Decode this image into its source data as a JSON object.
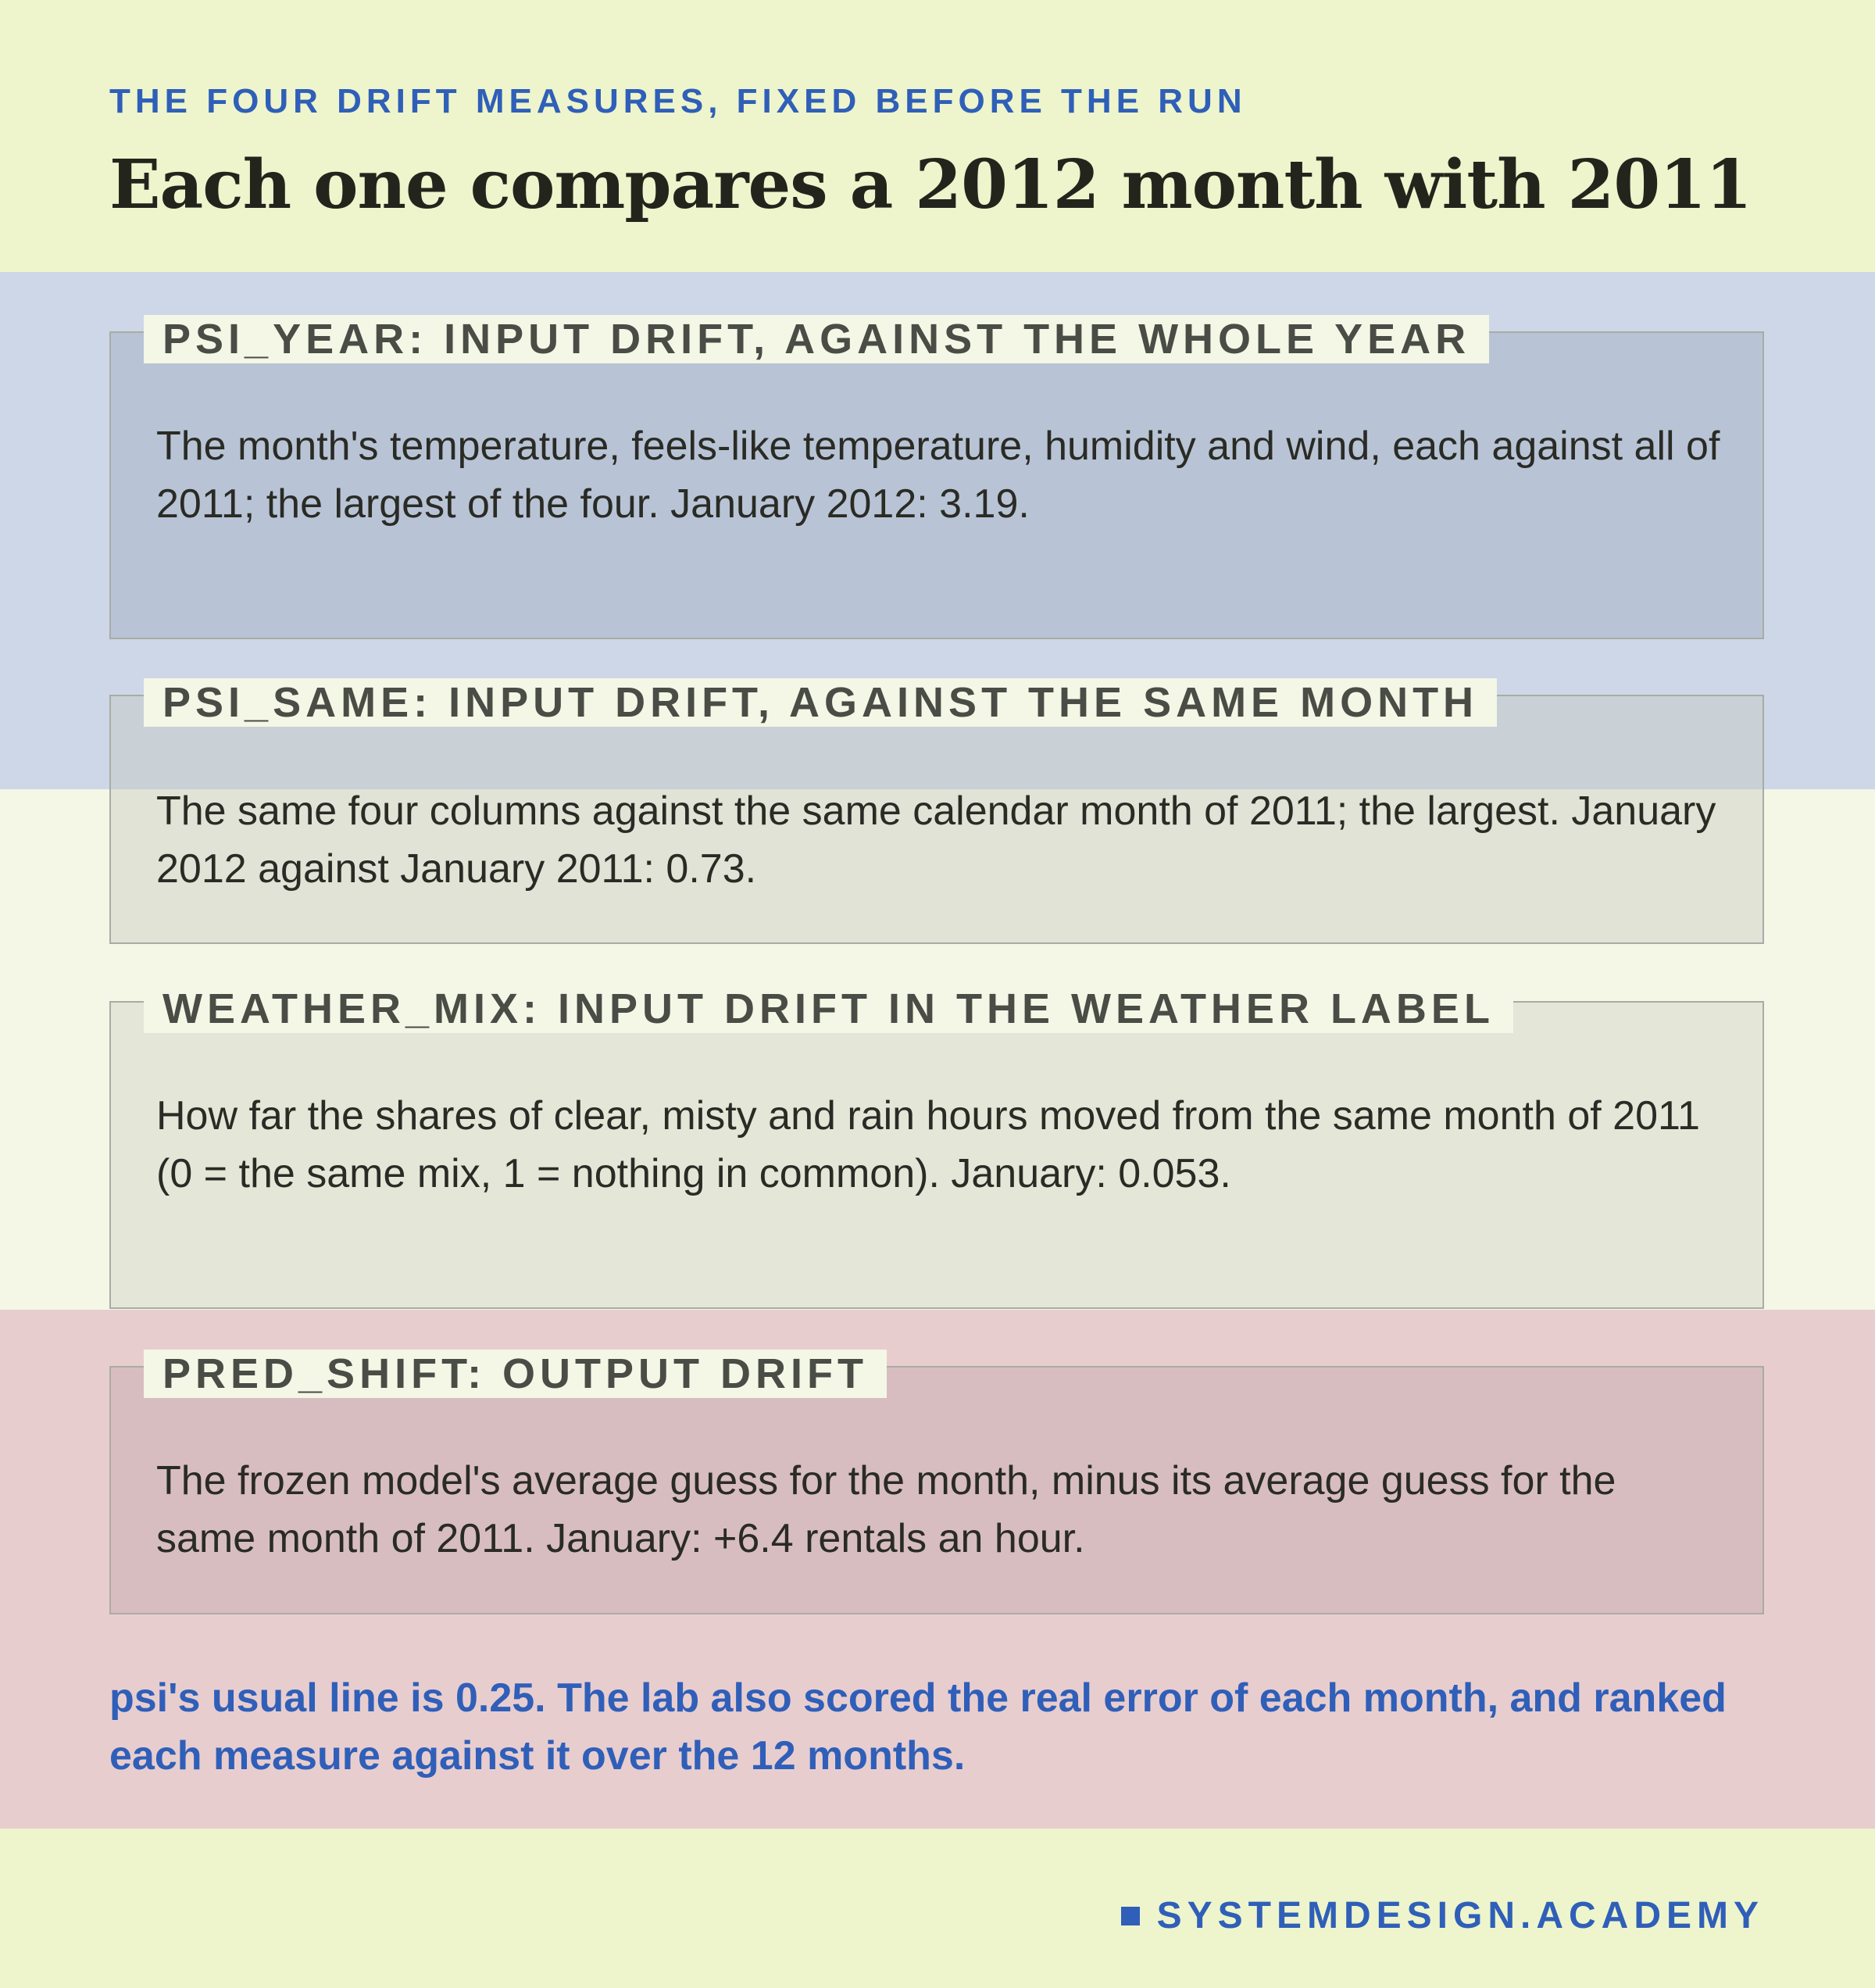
{
  "header": {
    "eyebrow": "THE FOUR DRIFT MEASURES, FIXED BEFORE THE RUN",
    "title": "Each one compares a 2012 month with 2011"
  },
  "measures": [
    {
      "label": "PSI_YEAR: INPUT DRIFT, AGAINST THE WHOLE YEAR",
      "body": "The month's temperature, feels-like temperature, humidity and wind, each against all of 2011; the largest of the four. January 2012: 3.19."
    },
    {
      "label": "PSI_SAME: INPUT DRIFT, AGAINST THE SAME MONTH",
      "body": "The same four columns against the same calendar month of 2011; the largest. January 2012 against January 2011: 0.73."
    },
    {
      "label": "WEATHER_MIX: INPUT DRIFT IN THE WEATHER LABEL",
      "body": "How far the shares of clear, misty and rain hours moved from the same month of 2011 (0 = the same mix, 1 = nothing in common). January: 0.053."
    },
    {
      "label": "PRED_SHIFT: OUTPUT DRIFT",
      "body": "The frozen model's average guess for the month, minus its average guess for the same month of 2011. January: +6.4 rentals an hour."
    }
  ],
  "note": "psi's usual line is 0.25. The lab also scored the real error of each month, and ranked each measure against it over the 12 months.",
  "brand": {
    "icon": "square-bullet-icon",
    "text": "SYSTEMDESIGN.ACADEMY"
  },
  "colors": {
    "accent_blue": "#2f5fb8",
    "band_blue": "#cdd7e7",
    "band_pink": "#e8cdcf",
    "background": "#eef5cc"
  }
}
